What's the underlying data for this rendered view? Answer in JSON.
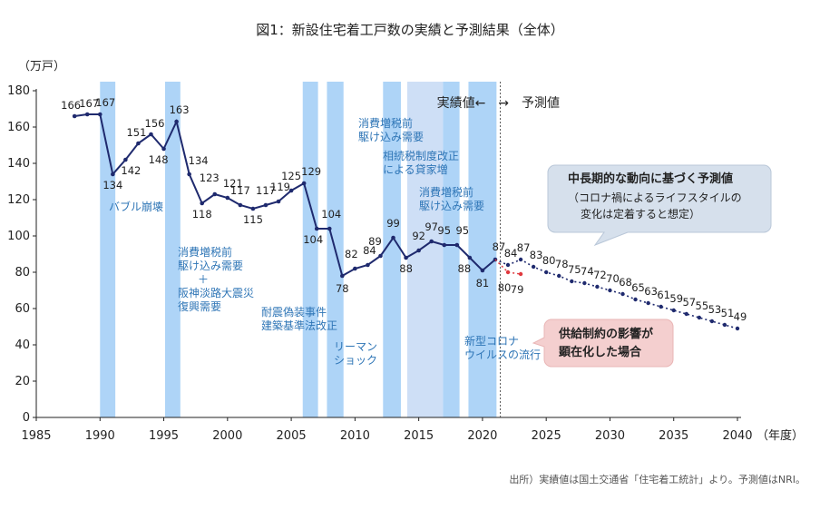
{
  "chart_data": {
    "type": "line",
    "title": "図1：新設住宅着工戸数の実績と予測結果（全体）",
    "ylabel": "（万戸）",
    "xlabel": "（年度）",
    "source": "出所）実績値は国土交通省「住宅着工統計」より。予測値はNRI。",
    "xlim": [
      1985,
      2040
    ],
    "ylim": [
      0,
      180
    ],
    "x_ticks": [
      1985,
      1990,
      1995,
      2000,
      2005,
      2010,
      2015,
      2020,
      2025,
      2030,
      2035,
      2040
    ],
    "y_ticks": [
      0,
      20,
      40,
      60,
      80,
      100,
      120,
      140,
      160,
      180
    ],
    "series": [
      {
        "kind": "actual",
        "color": "#1f2a6e",
        "points": [
          {
            "x": 1988,
            "y": 166
          },
          {
            "x": 1989,
            "y": 167
          },
          {
            "x": 1990,
            "y": 167
          },
          {
            "x": 1991,
            "y": 134
          },
          {
            "x": 1992,
            "y": 142
          },
          {
            "x": 1993,
            "y": 151
          },
          {
            "x": 1994,
            "y": 156
          },
          {
            "x": 1995,
            "y": 148
          },
          {
            "x": 1996,
            "y": 163
          },
          {
            "x": 1997,
            "y": 134
          },
          {
            "x": 1998,
            "y": 118
          },
          {
            "x": 1999,
            "y": 123
          },
          {
            "x": 2000,
            "y": 121
          },
          {
            "x": 2001,
            "y": 117
          },
          {
            "x": 2002,
            "y": 115
          },
          {
            "x": 2003,
            "y": 117
          },
          {
            "x": 2004,
            "y": 119
          },
          {
            "x": 2005,
            "y": 125
          },
          {
            "x": 2006,
            "y": 129
          },
          {
            "x": 2007,
            "y": 104
          },
          {
            "x": 2008,
            "y": 104
          },
          {
            "x": 2009,
            "y": 78
          },
          {
            "x": 2010,
            "y": 82
          },
          {
            "x": 2011,
            "y": 84
          },
          {
            "x": 2012,
            "y": 89
          },
          {
            "x": 2013,
            "y": 99
          },
          {
            "x": 2014,
            "y": 88
          },
          {
            "x": 2015,
            "y": 92
          },
          {
            "x": 2016,
            "y": 97
          },
          {
            "x": 2017,
            "y": 95
          },
          {
            "x": 2018,
            "y": 95
          },
          {
            "x": 2019,
            "y": 88
          },
          {
            "x": 2020,
            "y": 81
          },
          {
            "x": 2021,
            "y": 87
          }
        ]
      },
      {
        "kind": "forecast",
        "color": "#1f2a6e",
        "points": [
          {
            "x": 2021,
            "y": 87
          },
          {
            "x": 2022,
            "y": 84
          },
          {
            "x": 2023,
            "y": 87
          },
          {
            "x": 2024,
            "y": 83
          },
          {
            "x": 2025,
            "y": 80
          },
          {
            "x": 2026,
            "y": 78
          },
          {
            "x": 2027,
            "y": 75
          },
          {
            "x": 2028,
            "y": 74
          },
          {
            "x": 2029,
            "y": 72
          },
          {
            "x": 2030,
            "y": 70
          },
          {
            "x": 2031,
            "y": 68
          },
          {
            "x": 2032,
            "y": 65
          },
          {
            "x": 2033,
            "y": 63
          },
          {
            "x": 2034,
            "y": 61
          },
          {
            "x": 2035,
            "y": 59
          },
          {
            "x": 2036,
            "y": 57
          },
          {
            "x": 2037,
            "y": 55
          },
          {
            "x": 2038,
            "y": 53
          },
          {
            "x": 2039,
            "y": 51
          },
          {
            "x": 2040,
            "y": 49
          }
        ]
      },
      {
        "kind": "supply-constraint",
        "color": "#e0393e",
        "points": [
          {
            "x": 2021,
            "y": 87
          },
          {
            "x": 2022,
            "y": 80
          },
          {
            "x": 2023,
            "y": 79
          }
        ]
      }
    ],
    "bands": [
      {
        "from": 1990,
        "to": 1991.2,
        "label": "バブル崩壊"
      },
      {
        "from": 1995.1,
        "to": 1996.3,
        "label": "消費増税前\n駆け込み需要\n＋\n阪神淡路大震災\n復興需要"
      },
      {
        "from": 2005.9,
        "to": 2007.1,
        "label": "耐震偽装事件\n建築基準法改正"
      },
      {
        "from": 2007.8,
        "to": 2009.1,
        "label": "リーマン\nショック"
      },
      {
        "from": 2012.2,
        "to": 2013.6,
        "label": "消費増税前\n駆け込み需要"
      },
      {
        "from": 2014.1,
        "to": 2016.9,
        "label": "相続税制度改正\nによる貸家増"
      },
      {
        "from": 2016.9,
        "to": 2018.2,
        "label": "消費増税前\n駆け込み需要"
      },
      {
        "from": 2018.9,
        "to": 2021.1,
        "label": "新型コロナ\nウイルスの流行"
      }
    ],
    "divider_x": 2021.4,
    "actual_forecast_label": "実績値←　→　予測値",
    "callouts": [
      {
        "kind": "forecast",
        "title": "中長期的な動向に基づく予測値",
        "body": "（コロナ禍によるライフスタイルの\n変化は定着すると想定）"
      },
      {
        "kind": "supply",
        "title": "供給制約の影響が\n顕在化した場合"
      }
    ]
  }
}
